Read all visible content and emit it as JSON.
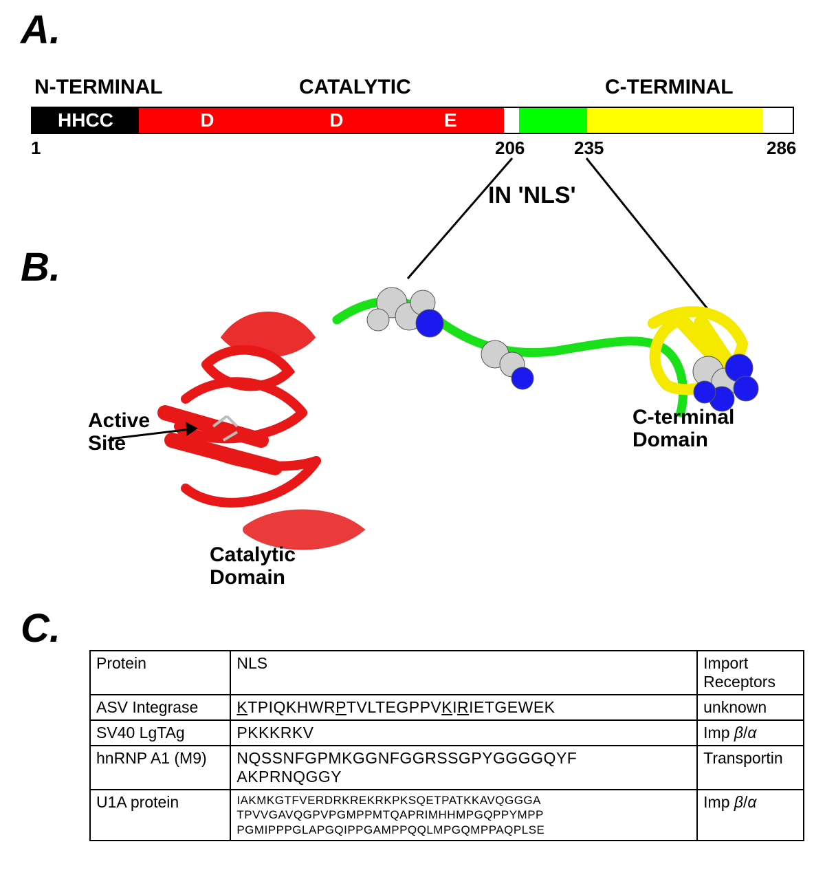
{
  "panelA": {
    "letter": "A.",
    "labels": {
      "nterm": "N-TERMINAL",
      "catalytic": "CATALYTIC",
      "cterm": "C-TERMINAL"
    },
    "bar": {
      "segments": [
        {
          "text": "HHCC",
          "bg": "#000000",
          "fg": "#ffffff",
          "flex": 14
        },
        {
          "text": "D",
          "bg": "#ff0000",
          "fg": "#ffffff",
          "flex": 18,
          "align": "center"
        },
        {
          "text": "D",
          "bg": "#ff0000",
          "fg": "#ffffff",
          "flex": 16,
          "align": "center"
        },
        {
          "text": "E",
          "bg": "#ff0000",
          "fg": "#ffffff",
          "flex": 14,
          "align": "center"
        },
        {
          "text": "",
          "bg": "#ffffff",
          "fg": "#000000",
          "flex": 2
        },
        {
          "text": "",
          "bg": "#00ff00",
          "fg": "#000000",
          "flex": 9
        },
        {
          "text": "",
          "bg": "#ffff00",
          "fg": "#000000",
          "flex": 23
        },
        {
          "text": "",
          "bg": "#ffffff",
          "fg": "#000000",
          "flex": 4
        }
      ],
      "positions": {
        "p1": "1",
        "p206": "206",
        "p235": "235",
        "p286": "286"
      },
      "nls_label": "IN 'NLS'"
    }
  },
  "panelB": {
    "letter": "B.",
    "labels": {
      "active_site": "Active\nSite",
      "catalytic_domain": "Catalytic\nDomain",
      "cterm_domain": "C-terminal\nDomain"
    },
    "colors": {
      "catalytic": "#e81818",
      "linker": "#19e019",
      "cterm": "#f5e900",
      "atom_c": "#d0d0d0",
      "atom_n": "#1a1af0"
    }
  },
  "panelC": {
    "letter": "C.",
    "table": {
      "headers": {
        "protein": "Protein",
        "nls": "NLS",
        "receptors": "Import\nReceptors"
      },
      "rows": [
        {
          "protein": "ASV Integrase",
          "nls_html": "<span class='u'>K</span>TPIQKHWR<span class='u'>P</span>TVLTEGPPV<span class='u'>K</span>I<span class='u'>R</span>IETGEWEK",
          "receptor": "unknown"
        },
        {
          "protein": "SV40 LgTAg",
          "nls_html": "PKKKRKV",
          "receptor": "Imp <span class='italic'>β</span>/<span class='italic'>α</span>"
        },
        {
          "protein": "hnRNP A1 (M9)",
          "nls_html": "NQSSNFGPMKGGNFGGRSSGPYGGGGQYF<br>AKPRNQGGY",
          "receptor": "Transportin"
        },
        {
          "protein": "U1A protein",
          "nls_html": "IAKMKGTFVERDRKREKRKPKSQETPATKKAVQGGGA<br>TPVVGAVQGPVPGMPPMTQAPRIMHHMPGQPPYMPP<br>PGMIPPPGLAPGQIPPGAMPPQQLMPGQMPPAQPLSE",
          "nls_small": true,
          "receptor": "Imp <span class='italic'>β</span>/<span class='italic'>α</span>"
        }
      ]
    }
  }
}
